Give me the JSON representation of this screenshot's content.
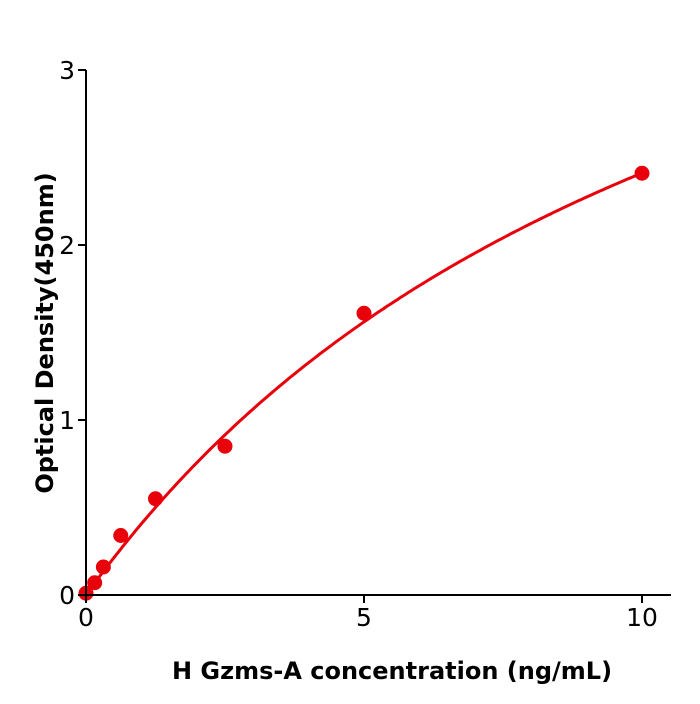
{
  "chart_data": {
    "type": "scatter",
    "title": "",
    "xlabel": "H  Gzms-A concentration (ng/mL)",
    "ylabel": "Optical Density(450nm)",
    "xlim": [
      0,
      10.5
    ],
    "ylim": [
      0,
      3
    ],
    "xticks": [
      "0",
      "5",
      "10"
    ],
    "yticks": [
      "0",
      "1",
      "2",
      "3"
    ],
    "grid": false,
    "legend": "none",
    "series": [
      {
        "x": [
          0,
          0.156,
          0.3125,
          0.625,
          1.25,
          2.5,
          5,
          10
        ],
        "y": [
          0.01,
          0.07,
          0.16,
          0.34,
          0.55,
          0.85,
          1.61,
          2.41
        ],
        "color": "#e8000b",
        "fit_curve": true
      }
    ]
  }
}
